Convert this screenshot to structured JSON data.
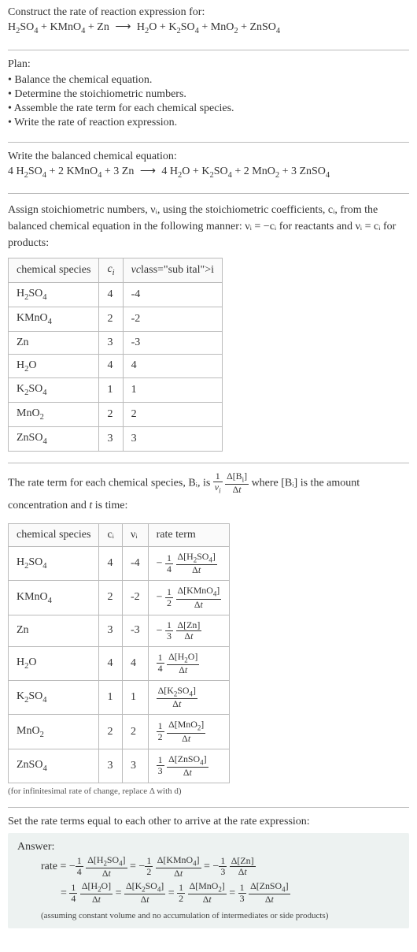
{
  "intro": {
    "construct_line": "Construct the rate of reaction expression for:"
  },
  "unbalanced": {
    "reactants": [
      {
        "formula": "H2SO4"
      },
      {
        "formula": "KMnO4"
      },
      {
        "formula": "Zn"
      }
    ],
    "products": [
      {
        "formula": "H2O"
      },
      {
        "formula": "K2SO4"
      },
      {
        "formula": "MnO2"
      },
      {
        "formula": "ZnSO4"
      }
    ]
  },
  "plan": {
    "title": "Plan:",
    "items": [
      "Balance the chemical equation.",
      "Determine the stoichiometric numbers.",
      "Assemble the rate term for each chemical species.",
      "Write the rate of reaction expression."
    ]
  },
  "balanced": {
    "title": "Write the balanced chemical equation:",
    "reactants": [
      {
        "coef": "4",
        "formula": "H2SO4"
      },
      {
        "coef": "2",
        "formula": "KMnO4"
      },
      {
        "coef": "3",
        "formula": "Zn"
      }
    ],
    "products": [
      {
        "coef": "4",
        "formula": "H2O"
      },
      {
        "coef": "",
        "formula": "K2SO4"
      },
      {
        "coef": "2",
        "formula": "MnO2"
      },
      {
        "coef": "3",
        "formula": "ZnSO4"
      }
    ]
  },
  "stoich_text": {
    "line1": "Assign stoichiometric numbers, νᵢ, using the stoichiometric coefficients, cᵢ, from the balanced chemical equation in the following manner: νᵢ = −cᵢ for reactants and νᵢ = cᵢ for products:"
  },
  "stoich_table": {
    "columns": [
      "chemical species",
      "cᵢ",
      "νᵢ"
    ],
    "rows": [
      {
        "species": "H2SO4",
        "c": "4",
        "v": "-4"
      },
      {
        "species": "KMnO4",
        "c": "2",
        "v": "-2"
      },
      {
        "species": "Zn",
        "c": "3",
        "v": "-3"
      },
      {
        "species": "H2O",
        "c": "4",
        "v": "4"
      },
      {
        "species": "K2SO4",
        "c": "1",
        "v": "1"
      },
      {
        "species": "MnO2",
        "c": "2",
        "v": "2"
      },
      {
        "species": "ZnSO4",
        "c": "3",
        "v": "3"
      }
    ]
  },
  "rate_term_text": {
    "prefix": "The rate term for each chemical species, Bᵢ, is ",
    "middle": " where [Bᵢ] is the amount concentration and ",
    "t": "t",
    "suffix": " is time:"
  },
  "rate_table": {
    "columns": [
      "chemical species",
      "cᵢ",
      "νᵢ",
      "rate term"
    ],
    "rows": [
      {
        "species": "H2SO4",
        "c": "4",
        "v": "-4",
        "neg": "−",
        "frac1_num": "1",
        "frac1_den": "4",
        "delta": "Δ[H2SO4]",
        "dt": "Δt"
      },
      {
        "species": "KMnO4",
        "c": "2",
        "v": "-2",
        "neg": "−",
        "frac1_num": "1",
        "frac1_den": "2",
        "delta": "Δ[KMnO4]",
        "dt": "Δt"
      },
      {
        "species": "Zn",
        "c": "3",
        "v": "-3",
        "neg": "−",
        "frac1_num": "1",
        "frac1_den": "3",
        "delta": "Δ[Zn]",
        "dt": "Δt"
      },
      {
        "species": "H2O",
        "c": "4",
        "v": "4",
        "neg": "",
        "frac1_num": "1",
        "frac1_den": "4",
        "delta": "Δ[H2O]",
        "dt": "Δt"
      },
      {
        "species": "K2SO4",
        "c": "1",
        "v": "1",
        "neg": "",
        "frac1_num": "",
        "frac1_den": "",
        "delta": "Δ[K2SO4]",
        "dt": "Δt"
      },
      {
        "species": "MnO2",
        "c": "2",
        "v": "2",
        "neg": "",
        "frac1_num": "1",
        "frac1_den": "2",
        "delta": "Δ[MnO2]",
        "dt": "Δt"
      },
      {
        "species": "ZnSO4",
        "c": "3",
        "v": "3",
        "neg": "",
        "frac1_num": "1",
        "frac1_den": "3",
        "delta": "Δ[ZnSO4]",
        "dt": "Δt"
      }
    ],
    "note": "(for infinitesimal rate of change, replace Δ with d)"
  },
  "set_equal": "Set the rate terms equal to each other to arrive at the rate expression:",
  "answer": {
    "label": "Answer:",
    "rate_label": "rate",
    "terms_line1": [
      {
        "neg": "−",
        "num": "1",
        "den": "4",
        "delta": "Δ[H2SO4]",
        "dt": "Δt"
      },
      {
        "neg": "−",
        "num": "1",
        "den": "2",
        "delta": "Δ[KMnO4]",
        "dt": "Δt"
      },
      {
        "neg": "−",
        "num": "1",
        "den": "3",
        "delta": "Δ[Zn]",
        "dt": "Δt"
      }
    ],
    "terms_line2": [
      {
        "neg": "",
        "num": "1",
        "den": "4",
        "delta": "Δ[H2O]",
        "dt": "Δt"
      },
      {
        "neg": "",
        "num": "",
        "den": "",
        "delta": "Δ[K2SO4]",
        "dt": "Δt"
      },
      {
        "neg": "",
        "num": "1",
        "den": "2",
        "delta": "Δ[MnO2]",
        "dt": "Δt"
      },
      {
        "neg": "",
        "num": "1",
        "den": "3",
        "delta": "Δ[ZnSO4]",
        "dt": "Δt"
      }
    ],
    "note": "(assuming constant volume and no accumulation of intermediates or side products)"
  },
  "colors": {
    "border": "#bbbbbb",
    "answer_bg": "#edf2f1",
    "text": "#333333"
  }
}
